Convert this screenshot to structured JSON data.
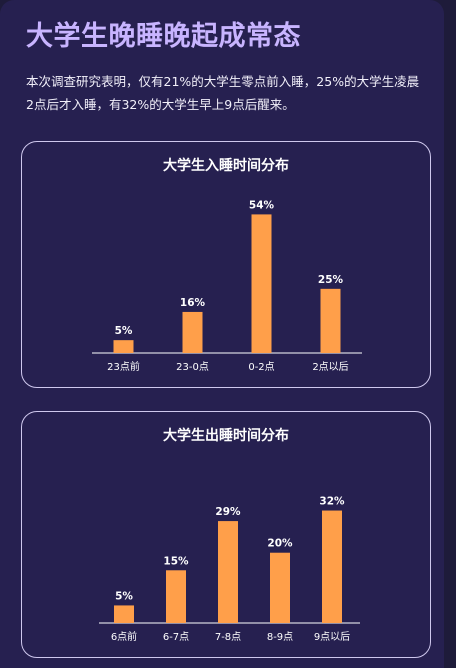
{
  "article": {
    "title": "大学生晚睡晚起成常态",
    "intro": "本次调查研究表明，仅有21%的大学生零点前入睡，25%的大学生凌晨2点后才入睡，有32%的大学生早上9点后醒来。"
  },
  "colors": {
    "background": "#262050",
    "title": "#c8b4ff",
    "bar": "#ff9f4a",
    "card_border": "#cfc8ee"
  },
  "chart_data": [
    {
      "type": "bar",
      "title": "大学生入睡时间分布",
      "categories": [
        "23点前",
        "23-0点",
        "0-2点",
        "2点以后"
      ],
      "values": [
        5,
        16,
        54,
        25
      ],
      "value_labels": [
        "5%",
        "16%",
        "54%",
        "25%"
      ],
      "xlabel": "",
      "ylabel": "",
      "ylim": [
        0,
        60
      ],
      "grid": false,
      "legend": false
    },
    {
      "type": "bar",
      "title": "大学生出睡时间分布",
      "categories": [
        "6点前",
        "6-7点",
        "7-8点",
        "8-9点",
        "9点以后"
      ],
      "values": [
        5,
        15,
        29,
        20,
        32
      ],
      "value_labels": [
        "5%",
        "15%",
        "29%",
        "20%",
        "32%"
      ],
      "xlabel": "",
      "ylabel": "",
      "ylim": [
        0,
        35
      ],
      "grid": false,
      "legend": false
    }
  ]
}
